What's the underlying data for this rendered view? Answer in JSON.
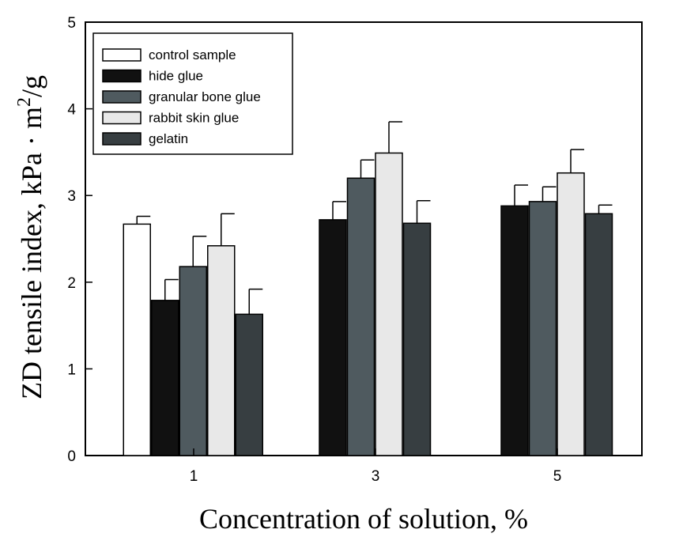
{
  "chart_data": {
    "type": "bar",
    "xlabel": "Concentration of solution, %",
    "ylabel_main": "ZD tensile index, kPa · m",
    "ylabel_sup": "2",
    "ylabel_tail": "/g",
    "ylim": [
      0,
      5
    ],
    "yticks": [
      "0",
      "1",
      "2",
      "3",
      "4",
      "5"
    ],
    "categories": [
      "1",
      "3",
      "5"
    ],
    "legend_position": "top-left",
    "series": [
      {
        "name": "control sample",
        "color": "#ffffff",
        "values": [
          2.67,
          null,
          null
        ],
        "errors": [
          0.09,
          null,
          null
        ]
      },
      {
        "name": "hide glue",
        "color": "#111111",
        "values": [
          1.79,
          2.72,
          2.88
        ],
        "errors": [
          0.24,
          0.21,
          0.24
        ]
      },
      {
        "name": "granular bone glue",
        "color": "#4f5a5f",
        "values": [
          2.18,
          3.2,
          2.93
        ],
        "errors": [
          0.35,
          0.21,
          0.17
        ]
      },
      {
        "name": "rabbit skin glue",
        "color": "#e8e8e8",
        "values": [
          2.42,
          3.49,
          3.26
        ],
        "errors": [
          0.37,
          0.36,
          0.27
        ]
      },
      {
        "name": "gelatin",
        "color": "#373e41",
        "values": [
          1.63,
          2.68,
          2.79
        ],
        "errors": [
          0.29,
          0.26,
          0.1
        ]
      }
    ]
  }
}
